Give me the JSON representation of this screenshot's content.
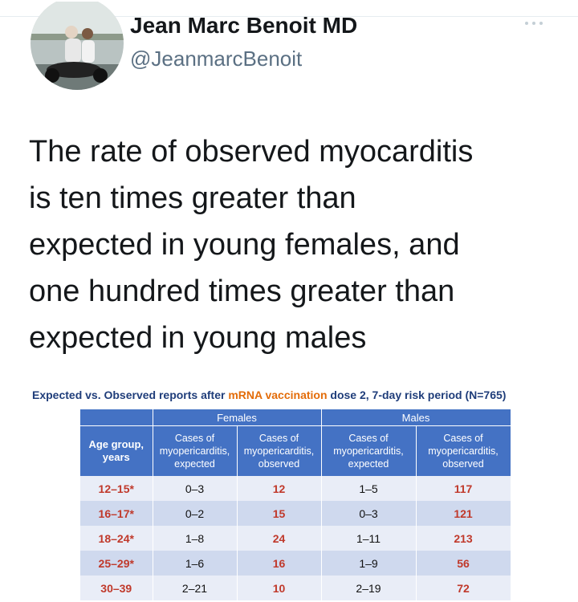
{
  "author": {
    "name": "Jean Marc Benoit MD",
    "handle": "@JeanmarcBenoit"
  },
  "tweet": {
    "lines": [
      "The rate of observed myocarditis",
      "is ten times greater than",
      "expected in young females, and",
      "one hundred times greater than",
      "expected in young males"
    ]
  },
  "figure": {
    "title": {
      "before": "Expected vs. Observed reports after ",
      "highlight": "mRNA vaccination",
      "after": " dose 2, 7-day risk period (N=765)"
    },
    "table": {
      "groups": [
        "Females",
        "Males"
      ],
      "age_header": "Age group, years",
      "columns": [
        "Cases of myopericarditis, expected",
        "Cases of myopericarditis, observed",
        "Cases of myopericarditis, expected",
        "Cases of myopericarditis, observed"
      ],
      "rows": [
        [
          "12–15*",
          "0–3",
          "12",
          "1–5",
          "117"
        ],
        [
          "16–17*",
          "0–2",
          "15",
          "0–3",
          "121"
        ],
        [
          "18–24*",
          "1–8",
          "24",
          "1–11",
          "213"
        ],
        [
          "25–29*",
          "1–6",
          "16",
          "1–9",
          "56"
        ],
        [
          "30–39",
          "2–21",
          "10",
          "2–19",
          "72"
        ]
      ]
    }
  }
}
